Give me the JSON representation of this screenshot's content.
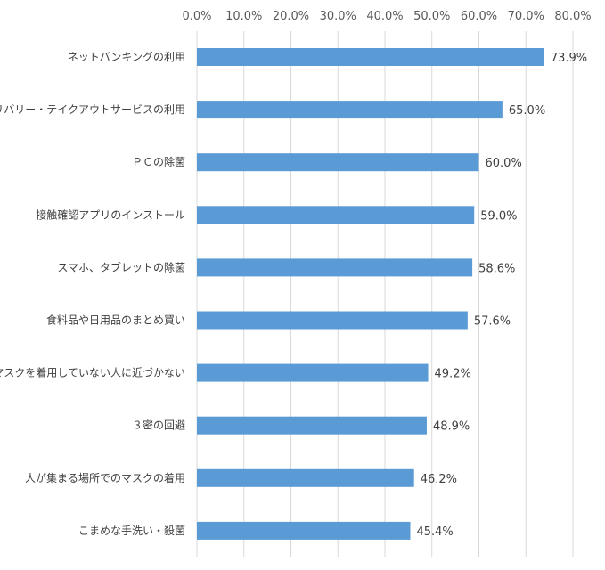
{
  "chart_data": {
    "type": "bar",
    "orientation": "horizontal",
    "title": "",
    "xlabel": "",
    "ylabel": "",
    "xlim": [
      0,
      80
    ],
    "x_ticks": [
      "0.0%",
      "10.0%",
      "20.0%",
      "30.0%",
      "40.0%",
      "50.0%",
      "60.0%",
      "70.0%",
      "80.0%"
    ],
    "tick_position": "top",
    "grid": true,
    "legend": "none",
    "bar_color": "#5b9bd5",
    "categories": [
      "ネットバンキングの利用",
      "デリバリー・テイクアウトサービスの利用",
      "ＰＣの除菌",
      "接触確認アプリのインストール",
      "スマホ、タブレットの除菌",
      "食料品や日用品のまとめ買い",
      "マスクを着用していない人に近づかない",
      "３密の回避",
      "人が集まる場所でのマスクの着用",
      "こまめな手洗い・殺菌"
    ],
    "values": [
      73.9,
      65.0,
      60.0,
      59.0,
      58.6,
      57.6,
      49.2,
      48.9,
      46.2,
      45.4
    ],
    "data_labels": [
      "73.9%",
      "65.0%",
      "60.0%",
      "59.0%",
      "58.6%",
      "57.6%",
      "49.2%",
      "48.9%",
      "46.2%",
      "45.4%"
    ]
  }
}
